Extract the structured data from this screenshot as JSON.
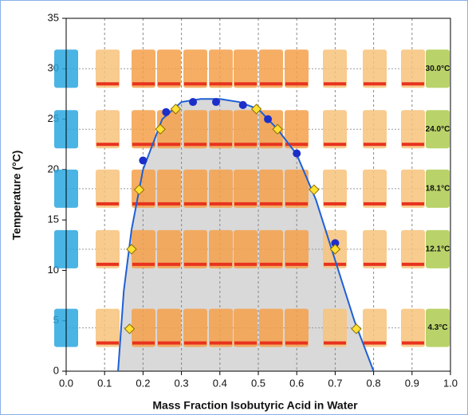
{
  "chart_data": {
    "type": "scatter",
    "x_label": "Mass Fraction Isobutyric Acid in Water",
    "y_label": "Temperature (°C)",
    "xlim": [
      0,
      1
    ],
    "ylim": [
      0,
      35
    ],
    "xticks": [
      {
        "value": 0,
        "label": "0.0"
      },
      {
        "value": 0.1,
        "label": "0.1"
      },
      {
        "value": 0.2,
        "label": "0.2"
      },
      {
        "value": 0.3,
        "label": "0.3"
      },
      {
        "value": 0.4,
        "label": "0.4"
      },
      {
        "value": 0.5,
        "label": "0.5"
      },
      {
        "value": 0.6,
        "label": "0.6"
      },
      {
        "value": 0.7,
        "label": "0.7"
      },
      {
        "value": 0.8,
        "label": "0.8"
      },
      {
        "value": 0.9,
        "label": "0.9"
      },
      {
        "value": 1,
        "label": "1.0"
      }
    ],
    "yticks": [
      0,
      5,
      10,
      15,
      20,
      25,
      30,
      35
    ],
    "grid": true,
    "temperature_rows": [
      {
        "value": 30.0,
        "label": "30.0°C"
      },
      {
        "value": 24.0,
        "label": "24.0°C"
      },
      {
        "value": 18.1,
        "label": "18.1°C"
      },
      {
        "value": 12.1,
        "label": "12.1°C"
      },
      {
        "value": 4.3,
        "label": "4.3°C"
      }
    ],
    "series": [
      {
        "marker": "line",
        "color": "#1f5fd6",
        "fill": "#d9d9d9",
        "x": [
          0.135,
          0.15,
          0.17,
          0.2,
          0.25,
          0.3,
          0.35,
          0.4,
          0.45,
          0.5,
          0.55,
          0.6,
          0.65,
          0.7,
          0.75,
          0.8
        ],
        "values": [
          0,
          8,
          14,
          20,
          25,
          26.7,
          27,
          27,
          26.7,
          26,
          24,
          21.5,
          17,
          11,
          5,
          0
        ]
      },
      {
        "marker": "circle",
        "color": "#1c2fc8",
        "x": [
          0.2,
          0.26,
          0.33,
          0.39,
          0.46,
          0.525,
          0.6,
          0.7
        ],
        "values": [
          20.9,
          25.7,
          26.7,
          26.7,
          26.4,
          25.0,
          21.6,
          12.7
        ]
      },
      {
        "marker": "diamond",
        "color": "#ffe033",
        "x": [
          0.165,
          0.17,
          0.19,
          0.245,
          0.285,
          0.495,
          0.55,
          0.645,
          0.7,
          0.755
        ],
        "values": [
          4.2,
          12.1,
          18.0,
          24.0,
          26.0,
          26.0,
          24.0,
          18.0,
          12.1,
          4.2
        ]
      }
    ]
  }
}
